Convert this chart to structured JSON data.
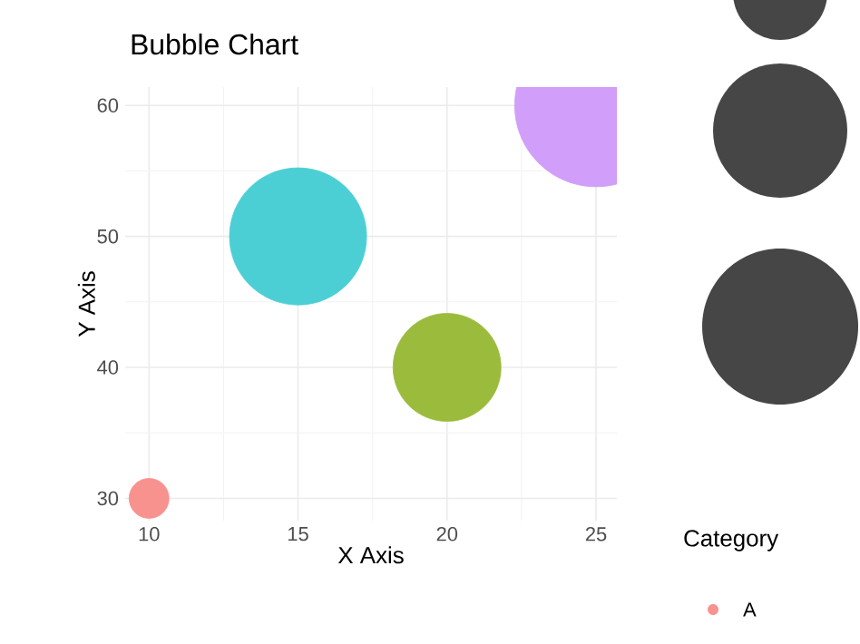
{
  "chart_data": {
    "type": "bubble",
    "title": "Bubble Chart",
    "xlabel": "X Axis",
    "ylabel": "Y Axis",
    "legend_title": "Category",
    "series": [
      {
        "name": "A",
        "color": "#f8928f",
        "x": [
          10
        ],
        "values": [
          30
        ],
        "sizes": [
          0.06
        ]
      },
      {
        "color": "#4ccfd4",
        "x": [
          15
        ],
        "values": [
          50
        ],
        "sizes": [
          0.71
        ]
      },
      {
        "color": "#9bbb3c",
        "x": [
          20
        ],
        "values": [
          40
        ],
        "sizes": [
          0.44
        ]
      },
      {
        "color": "#d19ef9",
        "x": [
          25
        ],
        "values": [
          60
        ],
        "sizes": [
          1
        ]
      }
    ],
    "xlim": [
      9.2,
      25.7
    ],
    "ylim": [
      28.3,
      61.4
    ],
    "xticks": [
      10,
      15,
      20,
      25
    ],
    "yticks": [
      30,
      40,
      50,
      60
    ],
    "grid": true,
    "legend": "right"
  }
}
